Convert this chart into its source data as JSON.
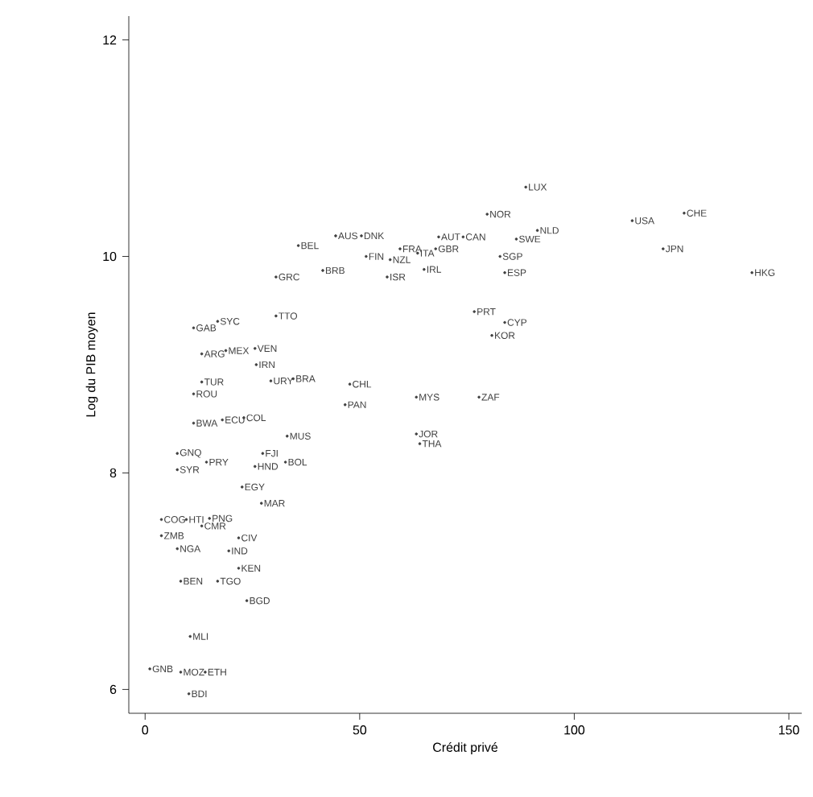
{
  "chart_data": {
    "type": "scatter",
    "xlabel": "Crédit privé",
    "ylabel": "Log du PIB moyen",
    "xlim": [
      -3.8,
      153
    ],
    "ylim": [
      5.78,
      12.22
    ],
    "xticks": [
      0,
      50,
      100,
      150
    ],
    "yticks": [
      6,
      8,
      10,
      12
    ],
    "grid": false,
    "marker": "circle",
    "series": [
      {
        "color": "#404040",
        "x": [
          88.7,
          79.7,
          125.6,
          113.5,
          91.4,
          86.5,
          120.7,
          82.7,
          83.8,
          141.4,
          76.7,
          83.8,
          80.8,
          77.8,
          44.4,
          50.4,
          68.4,
          74.1,
          35.7,
          51.5,
          59.4,
          67.7,
          57.1,
          63.5,
          56.4,
          65.0,
          41.4,
          30.5,
          30.5,
          47.7,
          46.6,
          63.2,
          63.2,
          64.0,
          29.3,
          34.5,
          32.7,
          27.4,
          25.6,
          33.1,
          16.9,
          11.3,
          13.2,
          18.8,
          25.6,
          25.9,
          13.2,
          11.3,
          11.3,
          18.0,
          23.0,
          7.5,
          7.5,
          14.3,
          22.6,
          27.1,
          3.8,
          3.8,
          9.6,
          7.5,
          15.0,
          13.2,
          21.8,
          19.5,
          21.8,
          8.3,
          16.9,
          23.7,
          10.5,
          1.1,
          8.3,
          14.0,
          10.2
        ],
        "values": [
          10.64,
          10.39,
          10.4,
          10.33,
          10.24,
          10.16,
          10.07,
          10.0,
          9.85,
          9.85,
          9.49,
          9.39,
          9.27,
          8.7,
          10.19,
          10.19,
          10.18,
          10.18,
          10.1,
          10.0,
          10.07,
          10.07,
          9.97,
          10.03,
          9.81,
          9.88,
          9.87,
          9.81,
          9.45,
          8.82,
          8.63,
          8.7,
          8.36,
          8.27,
          8.85,
          8.87,
          8.1,
          8.18,
          8.06,
          8.34,
          9.4,
          9.34,
          9.1,
          9.13,
          9.15,
          9.0,
          8.84,
          8.73,
          8.46,
          8.49,
          8.51,
          8.18,
          8.03,
          8.1,
          7.87,
          7.72,
          7.57,
          7.42,
          7.57,
          7.3,
          7.58,
          7.51,
          7.4,
          7.28,
          7.12,
          7.0,
          7.0,
          6.82,
          6.49,
          6.19,
          6.16,
          6.16,
          5.96
        ],
        "value_labels": [
          "LUX",
          "NOR",
          "CHE",
          "USA",
          "NLD",
          "SWE",
          "JPN",
          "SGP",
          "ESP",
          "HKG",
          "PRT",
          "CYP",
          "KOR",
          "ZAF",
          "AUS",
          "DNK",
          "AUT",
          "CAN",
          "BEL",
          "FIN",
          "FRA",
          "GBR",
          "NZL",
          "ITA",
          "ISR",
          "IRL",
          "BRB",
          "GRC",
          "TTO",
          "CHL",
          "PAN",
          "MYS",
          "JOR",
          "THA",
          "URY",
          "BRA",
          "BOL",
          "FJI",
          "HND",
          "MUS",
          "SYC",
          "GAB",
          "ARG",
          "MEX",
          "VEN",
          "IRN",
          "TUR",
          "ROU",
          "BWA",
          "ECU",
          "COL",
          "GNQ",
          "SYR",
          "PRY",
          "EGY",
          "MAR",
          "COG",
          "ZMB",
          "HTI",
          "NGA",
          "PNG",
          "CMR",
          "CIV",
          "IND",
          "KEN",
          "BEN",
          "TGO",
          "BGD",
          "MLI",
          "GNB",
          "MOZ",
          "ETH",
          "BDI"
        ]
      }
    ]
  }
}
